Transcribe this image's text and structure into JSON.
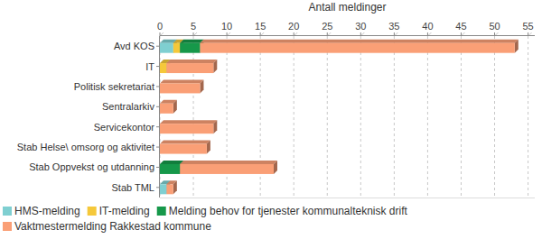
{
  "chart_data": {
    "type": "bar",
    "orientation": "horizontal",
    "stacked": true,
    "x_label": "Antall meldinger",
    "categories": [
      "Avd KOS",
      "IT",
      "Politisk sekretariat",
      "Sentralarkiv",
      "Servicekontor",
      "Stab Helse\\ omsorg og aktivitet",
      "Stab Oppvekst og utdanning",
      "Stab TML"
    ],
    "series": [
      {
        "name": "HMS-melding",
        "color": "#7fcfd1",
        "values": [
          2,
          0,
          0,
          0,
          0,
          0,
          0,
          1
        ]
      },
      {
        "name": "IT-melding",
        "color": "#f5c83a",
        "values": [
          1,
          1,
          0,
          0,
          0,
          0,
          0,
          0
        ]
      },
      {
        "name": "Melding behov for tjenester kommunalteknisk drift",
        "color": "#16984a",
        "values": [
          3,
          0,
          0,
          0,
          0,
          0,
          3,
          0
        ]
      },
      {
        "name": "Vaktmestermelding Rakkestad kommune",
        "color": "#fa9f76",
        "values": [
          47,
          7,
          6,
          2,
          8,
          7,
          14,
          1
        ]
      }
    ],
    "xlim": [
      0,
      56
    ],
    "xticks": [
      0,
      5,
      10,
      15,
      20,
      25,
      30,
      35,
      40,
      45,
      50,
      55
    ],
    "grid": true,
    "legend": "bottom"
  }
}
